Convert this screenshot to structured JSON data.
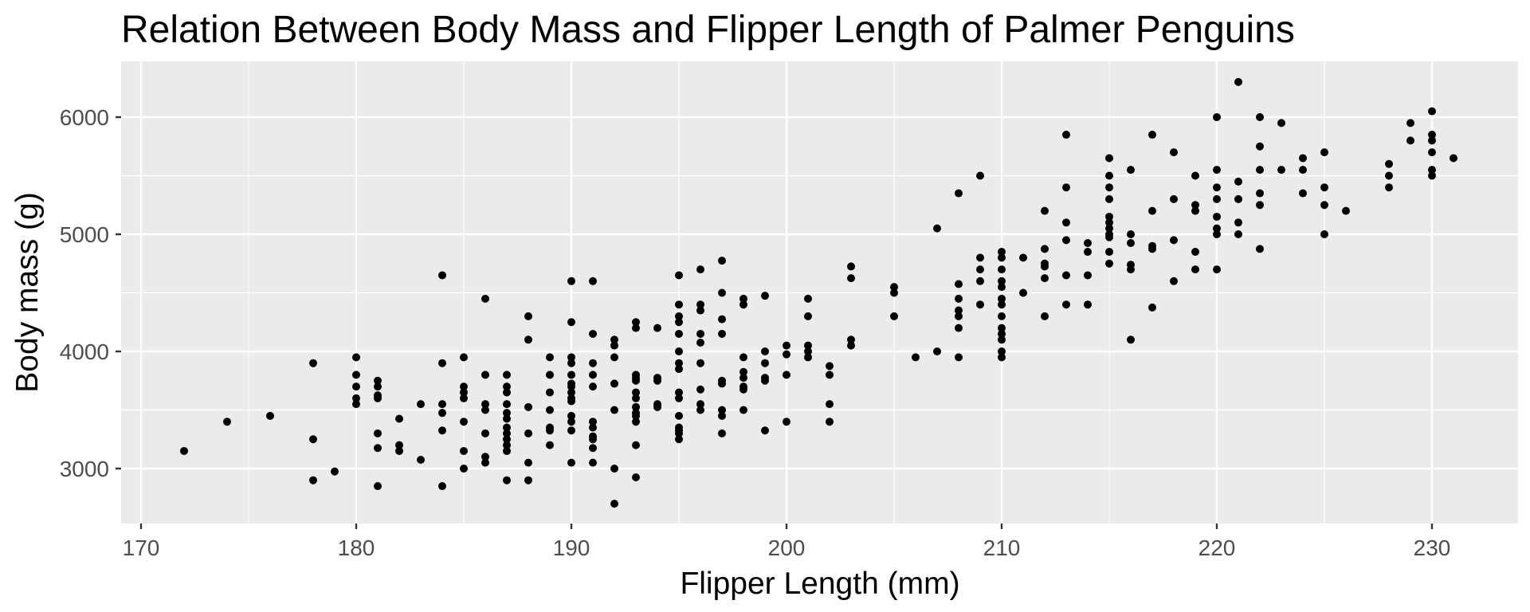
{
  "chart_data": {
    "type": "scatter",
    "title": "Relation Between Body Mass and Flipper Length of Palmer Penguins",
    "xlabel": "Flipper Length (mm)",
    "ylabel": "Body mass (g)",
    "xlim": [
      169,
      234
    ],
    "ylim": [
      2530,
      6480
    ],
    "x_ticks": [
      170,
      180,
      190,
      200,
      210,
      220,
      230
    ],
    "y_ticks": [
      3000,
      4000,
      5000,
      6000
    ],
    "x_tick_labels": [
      "170",
      "180",
      "190",
      "200",
      "210",
      "220",
      "230"
    ],
    "y_tick_labels": [
      "3000",
      "4000",
      "5000",
      "6000"
    ],
    "grid": true,
    "legend": null,
    "point_color": "#000000",
    "panel_background": "#EBEBEB",
    "points": [
      [
        172,
        3150
      ],
      [
        174,
        3400
      ],
      [
        176,
        3450
      ],
      [
        178,
        3900
      ],
      [
        178,
        3250
      ],
      [
        178,
        2900
      ],
      [
        179,
        2975
      ],
      [
        180,
        3950
      ],
      [
        180,
        3800
      ],
      [
        180,
        3700
      ],
      [
        180,
        3600
      ],
      [
        180,
        3550
      ],
      [
        181,
        3750
      ],
      [
        181,
        3700
      ],
      [
        181,
        3625
      ],
      [
        181,
        3600
      ],
      [
        181,
        3300
      ],
      [
        181,
        3175
      ],
      [
        181,
        2850
      ],
      [
        182,
        3425
      ],
      [
        182,
        3200
      ],
      [
        182,
        3150
      ],
      [
        183,
        3550
      ],
      [
        183,
        3075
      ],
      [
        184,
        4650
      ],
      [
        184,
        3900
      ],
      [
        184,
        3550
      ],
      [
        184,
        3475
      ],
      [
        184,
        3325
      ],
      [
        184,
        2850
      ],
      [
        185,
        3950
      ],
      [
        185,
        3700
      ],
      [
        185,
        3650
      ],
      [
        185,
        3600
      ],
      [
        185,
        3400
      ],
      [
        185,
        3150
      ],
      [
        185,
        3000
      ],
      [
        186,
        4450
      ],
      [
        186,
        3800
      ],
      [
        186,
        3550
      ],
      [
        186,
        3500
      ],
      [
        186,
        3300
      ],
      [
        186,
        3100
      ],
      [
        186,
        3050
      ],
      [
        187,
        3800
      ],
      [
        187,
        3700
      ],
      [
        187,
        3650
      ],
      [
        187,
        3550
      ],
      [
        187,
        3475
      ],
      [
        187,
        3425
      ],
      [
        187,
        3350
      ],
      [
        187,
        3300
      ],
      [
        187,
        3250
      ],
      [
        187,
        3200
      ],
      [
        187,
        3150
      ],
      [
        187,
        2900
      ],
      [
        188,
        4300
      ],
      [
        188,
        4100
      ],
      [
        188,
        3525
      ],
      [
        188,
        3300
      ],
      [
        188,
        3050
      ],
      [
        188,
        2900
      ],
      [
        189,
        3950
      ],
      [
        189,
        3800
      ],
      [
        189,
        3650
      ],
      [
        189,
        3500
      ],
      [
        189,
        3350
      ],
      [
        189,
        3325
      ],
      [
        189,
        3200
      ],
      [
        190,
        4600
      ],
      [
        190,
        4250
      ],
      [
        190,
        3950
      ],
      [
        190,
        3900
      ],
      [
        190,
        3800
      ],
      [
        190,
        3725
      ],
      [
        190,
        3700
      ],
      [
        190,
        3650
      ],
      [
        190,
        3600
      ],
      [
        190,
        3575
      ],
      [
        190,
        3450
      ],
      [
        190,
        3400
      ],
      [
        190,
        3325
      ],
      [
        190,
        3050
      ],
      [
        191,
        4600
      ],
      [
        191,
        4150
      ],
      [
        191,
        3900
      ],
      [
        191,
        3800
      ],
      [
        191,
        3700
      ],
      [
        191,
        3400
      ],
      [
        191,
        3350
      ],
      [
        191,
        3275
      ],
      [
        191,
        3250
      ],
      [
        191,
        3175
      ],
      [
        191,
        3050
      ],
      [
        192,
        4100
      ],
      [
        192,
        4050
      ],
      [
        192,
        3950
      ],
      [
        192,
        3725
      ],
      [
        192,
        3500
      ],
      [
        192,
        3000
      ],
      [
        192,
        2700
      ],
      [
        193,
        4250
      ],
      [
        193,
        4200
      ],
      [
        193,
        3800
      ],
      [
        193,
        3775
      ],
      [
        193,
        3750
      ],
      [
        193,
        3650
      ],
      [
        193,
        3600
      ],
      [
        193,
        3525
      ],
      [
        193,
        3475
      ],
      [
        193,
        3450
      ],
      [
        193,
        3400
      ],
      [
        193,
        3200
      ],
      [
        193,
        2925
      ],
      [
        194,
        4200
      ],
      [
        194,
        3775
      ],
      [
        194,
        3750
      ],
      [
        194,
        3550
      ],
      [
        194,
        3525
      ],
      [
        195,
        4650
      ],
      [
        195,
        4400
      ],
      [
        195,
        4300
      ],
      [
        195,
        4250
      ],
      [
        195,
        4150
      ],
      [
        195,
        4000
      ],
      [
        195,
        3900
      ],
      [
        195,
        3850
      ],
      [
        195,
        3650
      ],
      [
        195,
        3600
      ],
      [
        195,
        3450
      ],
      [
        195,
        3350
      ],
      [
        195,
        3325
      ],
      [
        195,
        3300
      ],
      [
        195,
        3250
      ],
      [
        196,
        4700
      ],
      [
        196,
        4400
      ],
      [
        196,
        4350
      ],
      [
        196,
        4150
      ],
      [
        196,
        4075
      ],
      [
        196,
        3900
      ],
      [
        196,
        3675
      ],
      [
        196,
        3550
      ],
      [
        196,
        3500
      ],
      [
        197,
        4775
      ],
      [
        197,
        4500
      ],
      [
        197,
        4275
      ],
      [
        197,
        4150
      ],
      [
        197,
        3750
      ],
      [
        197,
        3725
      ],
      [
        197,
        3500
      ],
      [
        197,
        3450
      ],
      [
        197,
        3300
      ],
      [
        198,
        4450
      ],
      [
        198,
        4400
      ],
      [
        198,
        3950
      ],
      [
        198,
        3825
      ],
      [
        198,
        3775
      ],
      [
        198,
        3700
      ],
      [
        198,
        3675
      ],
      [
        198,
        3500
      ],
      [
        199,
        4475
      ],
      [
        199,
        4000
      ],
      [
        199,
        3900
      ],
      [
        199,
        3775
      ],
      [
        199,
        3750
      ],
      [
        199,
        3325
      ],
      [
        200,
        4050
      ],
      [
        200,
        3975
      ],
      [
        200,
        3800
      ],
      [
        200,
        3400
      ],
      [
        201,
        4450
      ],
      [
        201,
        4300
      ],
      [
        201,
        4050
      ],
      [
        201,
        4000
      ],
      [
        201,
        3950
      ],
      [
        202,
        3875
      ],
      [
        202,
        3800
      ],
      [
        202,
        3550
      ],
      [
        202,
        3400
      ],
      [
        203,
        4725
      ],
      [
        203,
        4625
      ],
      [
        203,
        4100
      ],
      [
        203,
        4050
      ],
      [
        205,
        4550
      ],
      [
        205,
        4500
      ],
      [
        205,
        4300
      ],
      [
        206,
        3950
      ],
      [
        207,
        5050
      ],
      [
        207,
        4000
      ],
      [
        208,
        5350
      ],
      [
        208,
        4575
      ],
      [
        208,
        4450
      ],
      [
        208,
        4350
      ],
      [
        208,
        4300
      ],
      [
        208,
        4200
      ],
      [
        208,
        3950
      ],
      [
        209,
        5500
      ],
      [
        209,
        4800
      ],
      [
        209,
        4700
      ],
      [
        209,
        4600
      ],
      [
        209,
        4400
      ],
      [
        210,
        4850
      ],
      [
        210,
        4800
      ],
      [
        210,
        4700
      ],
      [
        210,
        4600
      ],
      [
        210,
        4550
      ],
      [
        210,
        4450
      ],
      [
        210,
        4400
      ],
      [
        210,
        4300
      ],
      [
        210,
        4200
      ],
      [
        210,
        4150
      ],
      [
        210,
        4100
      ],
      [
        210,
        4000
      ],
      [
        210,
        3950
      ],
      [
        211,
        4800
      ],
      [
        211,
        4500
      ],
      [
        212,
        5200
      ],
      [
        212,
        4875
      ],
      [
        212,
        4750
      ],
      [
        212,
        4725
      ],
      [
        212,
        4625
      ],
      [
        212,
        4300
      ],
      [
        213,
        5850
      ],
      [
        213,
        5400
      ],
      [
        213,
        5100
      ],
      [
        213,
        4950
      ],
      [
        213,
        4650
      ],
      [
        213,
        4400
      ],
      [
        214,
        4925
      ],
      [
        214,
        4850
      ],
      [
        214,
        4650
      ],
      [
        214,
        4400
      ],
      [
        215,
        5650
      ],
      [
        215,
        5500
      ],
      [
        215,
        5400
      ],
      [
        215,
        5300
      ],
      [
        215,
        5150
      ],
      [
        215,
        5100
      ],
      [
        215,
        5050
      ],
      [
        215,
        5000
      ],
      [
        215,
        4975
      ],
      [
        215,
        4850
      ],
      [
        215,
        4750
      ],
      [
        216,
        5550
      ],
      [
        216,
        5000
      ],
      [
        216,
        4925
      ],
      [
        216,
        4740
      ],
      [
        216,
        4700
      ],
      [
        216,
        4100
      ],
      [
        217,
        5850
      ],
      [
        217,
        5200
      ],
      [
        217,
        4900
      ],
      [
        217,
        4875
      ],
      [
        217,
        4375
      ],
      [
        218,
        5700
      ],
      [
        218,
        5300
      ],
      [
        218,
        4950
      ],
      [
        218,
        4600
      ],
      [
        219,
        5500
      ],
      [
        219,
        5250
      ],
      [
        219,
        5200
      ],
      [
        219,
        4850
      ],
      [
        219,
        4700
      ],
      [
        220,
        6000
      ],
      [
        220,
        5550
      ],
      [
        220,
        5400
      ],
      [
        220,
        5300
      ],
      [
        220,
        5150
      ],
      [
        220,
        5050
      ],
      [
        220,
        5000
      ],
      [
        220,
        4700
      ],
      [
        221,
        6300
      ],
      [
        221,
        5450
      ],
      [
        221,
        5300
      ],
      [
        221,
        5100
      ],
      [
        221,
        5000
      ],
      [
        222,
        6000
      ],
      [
        222,
        5750
      ],
      [
        222,
        5550
      ],
      [
        222,
        5350
      ],
      [
        222,
        5250
      ],
      [
        222,
        4875
      ],
      [
        223,
        5950
      ],
      [
        223,
        5550
      ],
      [
        224,
        5650
      ],
      [
        224,
        5550
      ],
      [
        224,
        5350
      ],
      [
        225,
        5700
      ],
      [
        225,
        5400
      ],
      [
        225,
        5250
      ],
      [
        225,
        5000
      ],
      [
        226,
        5200
      ],
      [
        228,
        5600
      ],
      [
        228,
        5500
      ],
      [
        228,
        5400
      ],
      [
        229,
        5950
      ],
      [
        229,
        5800
      ],
      [
        230,
        6050
      ],
      [
        230,
        5850
      ],
      [
        230,
        5800
      ],
      [
        230,
        5700
      ],
      [
        230,
        5550
      ],
      [
        230,
        5500
      ],
      [
        231,
        5650
      ]
    ]
  }
}
